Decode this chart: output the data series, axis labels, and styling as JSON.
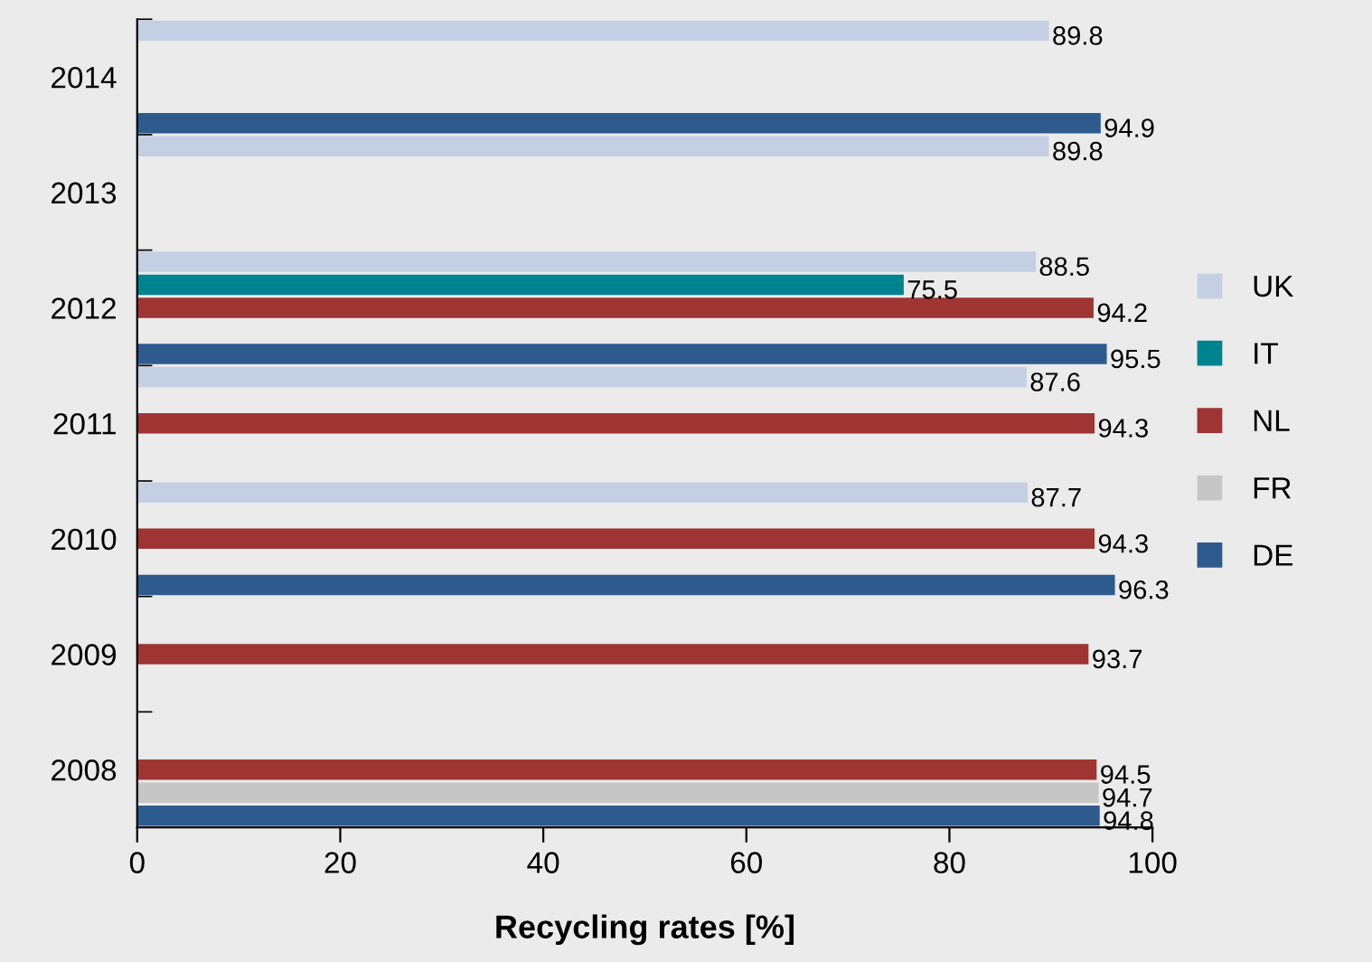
{
  "chart_data": {
    "type": "bar",
    "orientation": "horizontal",
    "xlabel": "Recycling rates [%]",
    "categories": [
      "2014",
      "2013",
      "2012",
      "2011",
      "2010",
      "2009",
      "2008"
    ],
    "series": [
      {
        "name": "UK",
        "color": "#c5cfe4",
        "values": [
          89.8,
          89.8,
          88.5,
          87.6,
          87.7,
          null,
          null
        ]
      },
      {
        "name": "IT",
        "color": "#00838f",
        "values": [
          null,
          null,
          75.5,
          null,
          null,
          null,
          null
        ]
      },
      {
        "name": "NL",
        "color": "#9e3533",
        "values": [
          null,
          null,
          94.2,
          94.3,
          94.3,
          93.7,
          94.5
        ]
      },
      {
        "name": "FR",
        "color": "#c6c6c6",
        "values": [
          null,
          null,
          null,
          null,
          null,
          null,
          94.7
        ]
      },
      {
        "name": "DE",
        "color": "#2e5a8e",
        "values": [
          94.9,
          null,
          95.5,
          null,
          96.3,
          null,
          94.8
        ]
      }
    ],
    "xlim": [
      0,
      100
    ],
    "xticks": [
      0,
      20,
      40,
      60,
      80,
      100
    ],
    "data_labels": true,
    "grid": false,
    "legend": "right"
  }
}
